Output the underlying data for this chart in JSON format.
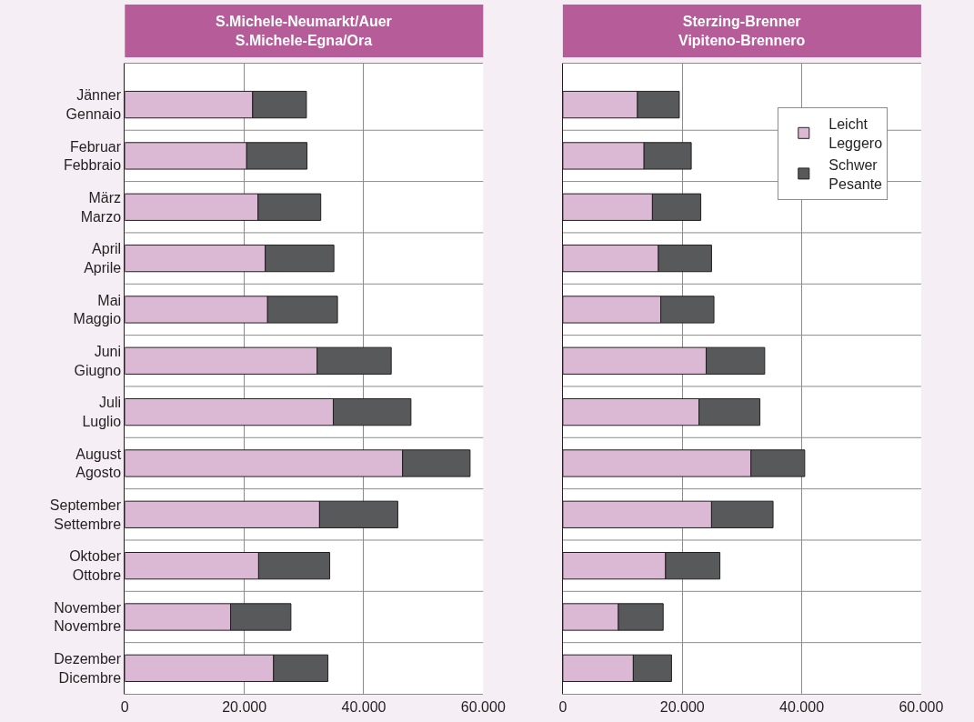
{
  "chart_data": [
    {
      "type": "bar",
      "orientation": "horizontal",
      "stacked": true,
      "title": "S.Michele-Neumarkt/Auer\nS.Michele-Egna/Ora",
      "categories": [
        "Jänner\nGennaio",
        "Februar\nFebbraio",
        "März\nMarzo",
        "April\nAprile",
        "Mai\nMaggio",
        "Juni\nGiugno",
        "Juli\nLuglio",
        "August\nAgosto",
        "September\nSettembre",
        "Oktober\nOttobre",
        "November\nNovembre",
        "Dezember\nDicembre"
      ],
      "series": [
        {
          "color": "#dbb8d4",
          "values": [
            21400,
            20400,
            22300,
            23500,
            23900,
            32200,
            34900,
            46500,
            32600,
            22400,
            17700,
            24900
          ]
        },
        {
          "color": "#58595b",
          "values": [
            9000,
            10100,
            10500,
            11500,
            11700,
            12400,
            13000,
            11300,
            13100,
            11900,
            10100,
            9100
          ]
        }
      ],
      "xlim": [
        0,
        60000
      ],
      "xticks": [
        0,
        {
          "value": 20000,
          "label": "20.000"
        },
        {
          "value": 40000,
          "label": "40.000"
        },
        {
          "value": 60000,
          "label": "60.000"
        }
      ],
      "grid": true
    },
    {
      "type": "bar",
      "orientation": "horizontal",
      "stacked": true,
      "title": "Sterzing-Brenner\nVipiteno-Brennero",
      "categories": [
        "Jänner\nGennaio",
        "Februar\nFebbraio",
        "März\nMarzo",
        "April\nAprile",
        "Mai\nMaggio",
        "Juni\nGiugno",
        "Juli\nLuglio",
        "August\nAgosto",
        "September\nSettembre",
        "Oktober\nOttobre",
        "November\nNovembre",
        "Dezember\nDicembre"
      ],
      "series": [
        {
          "name": "Leicht\nLeggero",
          "color": "#dbb8d4",
          "values": [
            12500,
            13600,
            15000,
            16000,
            16400,
            24000,
            22800,
            31500,
            24900,
            17200,
            9300,
            11800
          ]
        },
        {
          "name": "Schwer\nPesante",
          "color": "#58595b",
          "values": [
            7000,
            7900,
            8100,
            8900,
            8900,
            9800,
            10200,
            9000,
            10300,
            9100,
            7500,
            6400
          ]
        }
      ],
      "xlim": [
        0,
        60000
      ],
      "xticks": [
        0,
        {
          "value": 20000,
          "label": "20.000"
        },
        {
          "value": 40000,
          "label": "40.000"
        },
        {
          "value": 60000,
          "label": "60.000"
        }
      ],
      "grid": true,
      "tick_labels": "x",
      "legend": "top right"
    }
  ]
}
